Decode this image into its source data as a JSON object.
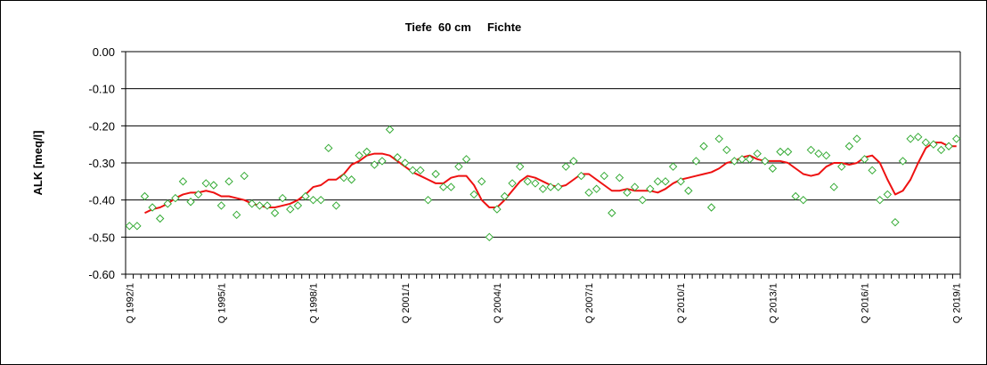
{
  "chart_data": {
    "type": "line",
    "title": "Tiefe  60 cm     Fichte",
    "xlabel": "",
    "ylabel": "ALK [meq/l]",
    "ylim": [
      -0.6,
      0.0
    ],
    "yticks": [
      "0.00",
      "-0.10",
      "-0.20",
      "-0.30",
      "-0.40",
      "-0.50",
      "-0.60"
    ],
    "yticks_values": [
      0.0,
      -0.1,
      -0.2,
      -0.3,
      -0.4,
      -0.5,
      -0.6
    ],
    "xticks": [
      "Q 1992/1",
      "Q 1995/1",
      "Q 1998/1",
      "Q 2001/1",
      "Q 2004/1",
      "Q 2007/1",
      "Q 2010/1",
      "Q 2013/1",
      "Q 2016/1",
      "Q 2019/1"
    ],
    "x_range": [
      "Q 1992/1",
      "Q 2019/4"
    ],
    "quarters_per_year": 4,
    "grid": "horizontal",
    "series": [
      {
        "name": "",
        "style": "markers",
        "marker": "diamond",
        "color": "#33aa33",
        "values": [
          -0.47,
          -0.47,
          -0.39,
          -0.42,
          -0.45,
          -0.41,
          -0.395,
          -0.35,
          -0.405,
          -0.385,
          -0.355,
          -0.36,
          -0.415,
          -0.35,
          -0.44,
          -0.335,
          -0.41,
          -0.415,
          -0.415,
          -0.435,
          -0.395,
          -0.425,
          -0.415,
          -0.39,
          -0.4,
          -0.4,
          -0.26,
          -0.415,
          -0.34,
          -0.345,
          -0.28,
          -0.27,
          -0.305,
          -0.295,
          -0.21,
          -0.285,
          -0.3,
          -0.32,
          -0.32,
          -0.4,
          -0.33,
          -0.365,
          -0.365,
          -0.31,
          -0.29,
          -0.385,
          -0.35,
          -0.5,
          -0.425,
          -0.39,
          -0.355,
          -0.31,
          -0.35,
          -0.355,
          -0.37,
          -0.365,
          -0.365,
          -0.31,
          -0.295,
          -0.335,
          -0.38,
          -0.37,
          -0.335,
          -0.435,
          -0.34,
          -0.38,
          -0.365,
          -0.4,
          -0.37,
          -0.35,
          -0.35,
          -0.31,
          -0.35,
          -0.375,
          -0.295,
          -0.255,
          -0.42,
          -0.235,
          -0.265,
          -0.295,
          -0.29,
          -0.29,
          -0.275,
          -0.295,
          -0.315,
          -0.27,
          -0.27,
          -0.39,
          -0.4,
          -0.265,
          -0.275,
          -0.28,
          -0.365,
          -0.31,
          -0.255,
          -0.235,
          -0.29,
          -0.32,
          -0.4,
          -0.385,
          -0.46,
          -0.295,
          -0.235,
          -0.23,
          -0.245,
          -0.25,
          -0.265,
          -0.255,
          -0.235
        ]
      },
      {
        "name": "",
        "style": "line",
        "color": "#ee1111",
        "start_quarter": 2,
        "values": [
          -0.435,
          -0.425,
          -0.42,
          -0.41,
          -0.395,
          -0.385,
          -0.38,
          -0.38,
          -0.375,
          -0.38,
          -0.39,
          -0.39,
          -0.395,
          -0.4,
          -0.41,
          -0.415,
          -0.42,
          -0.42,
          -0.415,
          -0.41,
          -0.4,
          -0.385,
          -0.365,
          -0.36,
          -0.345,
          -0.345,
          -0.33,
          -0.305,
          -0.295,
          -0.28,
          -0.275,
          -0.275,
          -0.28,
          -0.295,
          -0.31,
          -0.325,
          -0.335,
          -0.345,
          -0.355,
          -0.355,
          -0.34,
          -0.335,
          -0.335,
          -0.36,
          -0.4,
          -0.42,
          -0.42,
          -0.4,
          -0.375,
          -0.35,
          -0.335,
          -0.34,
          -0.35,
          -0.36,
          -0.365,
          -0.36,
          -0.345,
          -0.33,
          -0.33,
          -0.345,
          -0.36,
          -0.375,
          -0.375,
          -0.37,
          -0.375,
          -0.375,
          -0.375,
          -0.38,
          -0.37,
          -0.355,
          -0.345,
          -0.34,
          -0.335,
          -0.33,
          -0.325,
          -0.315,
          -0.3,
          -0.295,
          -0.285,
          -0.28,
          -0.29,
          -0.295,
          -0.295,
          -0.295,
          -0.3,
          -0.315,
          -0.33,
          -0.335,
          -0.33,
          -0.31,
          -0.3,
          -0.3,
          -0.305,
          -0.3,
          -0.285,
          -0.28,
          -0.3,
          -0.345,
          -0.385,
          -0.375,
          -0.345,
          -0.3,
          -0.26,
          -0.245,
          -0.245,
          -0.255,
          -0.255
        ]
      }
    ]
  }
}
